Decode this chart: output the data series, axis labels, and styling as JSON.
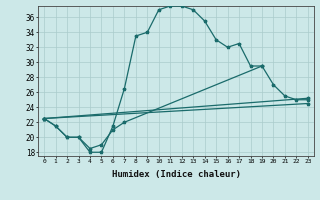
{
  "xlabel": "Humidex (Indice chaleur)",
  "bg_color": "#cce8e8",
  "line_color": "#1a6b6b",
  "grid_color": "#aacccc",
  "xlim": [
    -0.5,
    23.5
  ],
  "ylim": [
    17.5,
    37.5
  ],
  "xticks": [
    0,
    1,
    2,
    3,
    4,
    5,
    6,
    7,
    8,
    9,
    10,
    11,
    12,
    13,
    14,
    15,
    16,
    17,
    18,
    19,
    20,
    21,
    22,
    23
  ],
  "yticks": [
    18,
    20,
    22,
    24,
    26,
    28,
    30,
    32,
    34,
    36
  ],
  "line1_x": [
    0,
    1,
    2,
    3,
    4,
    5,
    6,
    7,
    8,
    9,
    10,
    11,
    12,
    13,
    14,
    15,
    16,
    17,
    18,
    19
  ],
  "line1_y": [
    22.5,
    21.5,
    20.0,
    20.0,
    18.0,
    18.0,
    21.5,
    26.5,
    33.5,
    34.0,
    37.0,
    37.5,
    37.5,
    37.0,
    35.5,
    33.0,
    32.0,
    32.5,
    29.5,
    29.5
  ],
  "line2_x": [
    0,
    1,
    2,
    3,
    4,
    5,
    6,
    7,
    19,
    20,
    21,
    22,
    23
  ],
  "line2_y": [
    22.5,
    21.5,
    20.0,
    20.0,
    18.5,
    19.0,
    21.0,
    22.0,
    29.5,
    27.0,
    25.5,
    25.0,
    25.0
  ],
  "line3_x": [
    0,
    23
  ],
  "line3_y": [
    22.5,
    24.5
  ],
  "line4_x": [
    0,
    23
  ],
  "line4_y": [
    22.5,
    25.2
  ]
}
